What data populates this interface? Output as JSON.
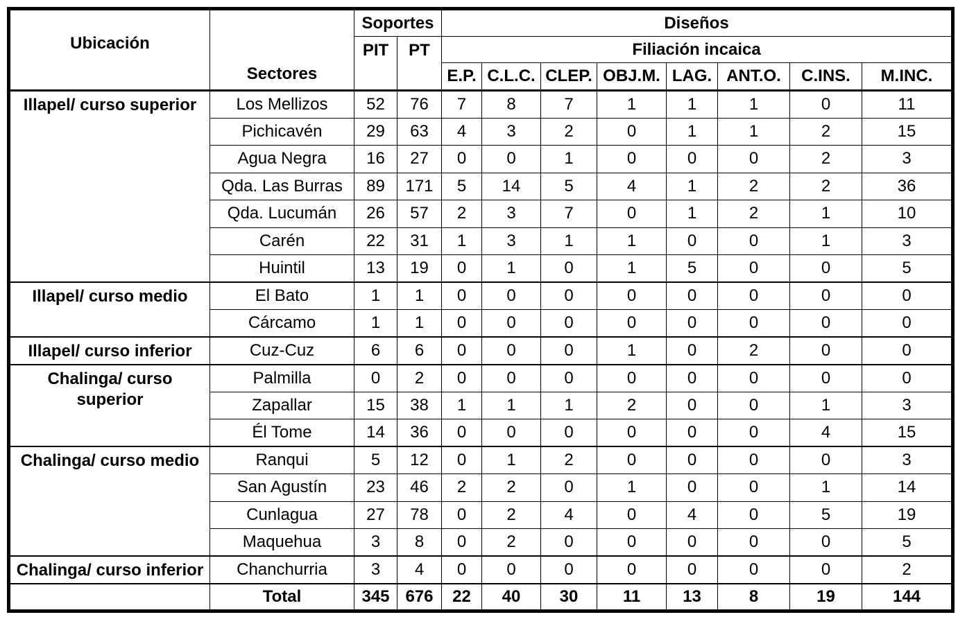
{
  "colors": {
    "border": "#000000",
    "background": "#ffffff",
    "text": "#000000"
  },
  "table": {
    "header": {
      "ubicacion": "Ubicación",
      "sectores": "Sectores",
      "soportes": "Soportes",
      "disenos": "Diseños",
      "filiacion": "Filiación incaica",
      "soporte_cols": [
        "PIT",
        "PT"
      ],
      "diseno_cols": [
        "E.P.",
        "C.L.C.",
        "CLEP.",
        "OBJ.M.",
        "LAG.",
        "ANT.O.",
        "C.INS.",
        "M.INC."
      ]
    },
    "groups": [
      {
        "ubicacion": "Illapel/ curso superior",
        "rows": [
          {
            "sector": "Los Mellizos",
            "values": [
              52,
              76,
              7,
              8,
              7,
              1,
              1,
              1,
              0,
              11
            ]
          },
          {
            "sector": "Pichicavén",
            "values": [
              29,
              63,
              4,
              3,
              2,
              0,
              1,
              1,
              2,
              15
            ]
          },
          {
            "sector": "Agua Negra",
            "values": [
              16,
              27,
              0,
              0,
              1,
              0,
              0,
              0,
              2,
              3
            ]
          },
          {
            "sector": "Qda. Las Burras",
            "values": [
              89,
              171,
              5,
              14,
              5,
              4,
              1,
              2,
              2,
              36
            ]
          },
          {
            "sector": "Qda. Lucumán",
            "values": [
              26,
              57,
              2,
              3,
              7,
              0,
              1,
              2,
              1,
              10
            ]
          },
          {
            "sector": "Carén",
            "values": [
              22,
              31,
              1,
              3,
              1,
              1,
              0,
              0,
              1,
              3
            ]
          },
          {
            "sector": "Huintil",
            "values": [
              13,
              19,
              0,
              1,
              0,
              1,
              5,
              0,
              0,
              5
            ]
          }
        ]
      },
      {
        "ubicacion": "Illapel/ curso medio",
        "rows": [
          {
            "sector": "El Bato",
            "values": [
              1,
              1,
              0,
              0,
              0,
              0,
              0,
              0,
              0,
              0
            ]
          },
          {
            "sector": "Cárcamo",
            "values": [
              1,
              1,
              0,
              0,
              0,
              0,
              0,
              0,
              0,
              0
            ]
          }
        ]
      },
      {
        "ubicacion": "Illapel/ curso inferior",
        "rows": [
          {
            "sector": "Cuz-Cuz",
            "values": [
              6,
              6,
              0,
              0,
              0,
              1,
              0,
              2,
              0,
              0
            ]
          }
        ]
      },
      {
        "ubicacion": "Chalinga/ curso\nsuperior",
        "rows": [
          {
            "sector": "Palmilla",
            "values": [
              0,
              2,
              0,
              0,
              0,
              0,
              0,
              0,
              0,
              0
            ]
          },
          {
            "sector": "Zapallar",
            "values": [
              15,
              38,
              1,
              1,
              1,
              2,
              0,
              0,
              1,
              3
            ]
          },
          {
            "sector": "Él Tome",
            "values": [
              14,
              36,
              0,
              0,
              0,
              0,
              0,
              0,
              4,
              15
            ]
          }
        ]
      },
      {
        "ubicacion": "Chalinga/ curso medio",
        "rows": [
          {
            "sector": "Ranqui",
            "values": [
              5,
              12,
              0,
              1,
              2,
              0,
              0,
              0,
              0,
              3
            ]
          },
          {
            "sector": "San Agustín",
            "values": [
              23,
              46,
              2,
              2,
              0,
              1,
              0,
              0,
              1,
              14
            ]
          },
          {
            "sector": "Cunlagua",
            "values": [
              27,
              78,
              0,
              2,
              4,
              0,
              4,
              0,
              5,
              19
            ]
          },
          {
            "sector": "Maquehua",
            "values": [
              3,
              8,
              0,
              2,
              0,
              0,
              0,
              0,
              0,
              5
            ]
          }
        ]
      },
      {
        "ubicacion": "Chalinga/ curso inferior",
        "rows": [
          {
            "sector": "Chanchurria",
            "values": [
              3,
              4,
              0,
              0,
              0,
              0,
              0,
              0,
              0,
              2
            ]
          }
        ]
      }
    ],
    "total": {
      "label": "Total",
      "values": [
        345,
        676,
        22,
        40,
        30,
        11,
        13,
        8,
        19,
        144
      ]
    }
  },
  "chart_data": {
    "type": "table",
    "columns": [
      "Ubicación",
      "Sectores",
      "PIT",
      "PT",
      "E.P.",
      "C.L.C.",
      "CLEP.",
      "OBJ.M.",
      "LAG.",
      "ANT.O.",
      "C.INS.",
      "M.INC."
    ],
    "column_groups": {
      "PIT_PT": "Soportes",
      "design_cols": "Diseños / Filiación incaica"
    },
    "rows": [
      [
        "Illapel/ curso superior",
        "Los Mellizos",
        52,
        76,
        7,
        8,
        7,
        1,
        1,
        1,
        0,
        11
      ],
      [
        "Illapel/ curso superior",
        "Pichicavén",
        29,
        63,
        4,
        3,
        2,
        0,
        1,
        1,
        2,
        15
      ],
      [
        "Illapel/ curso superior",
        "Agua Negra",
        16,
        27,
        0,
        0,
        1,
        0,
        0,
        0,
        2,
        3
      ],
      [
        "Illapel/ curso superior",
        "Qda. Las Burras",
        89,
        171,
        5,
        14,
        5,
        4,
        1,
        2,
        2,
        36
      ],
      [
        "Illapel/ curso superior",
        "Qda. Lucumán",
        26,
        57,
        2,
        3,
        7,
        0,
        1,
        2,
        1,
        10
      ],
      [
        "Illapel/ curso superior",
        "Carén",
        22,
        31,
        1,
        3,
        1,
        1,
        0,
        0,
        1,
        3
      ],
      [
        "Illapel/ curso superior",
        "Huintil",
        13,
        19,
        0,
        1,
        0,
        1,
        5,
        0,
        0,
        5
      ],
      [
        "Illapel/ curso medio",
        "El Bato",
        1,
        1,
        0,
        0,
        0,
        0,
        0,
        0,
        0,
        0
      ],
      [
        "Illapel/ curso medio",
        "Cárcamo",
        1,
        1,
        0,
        0,
        0,
        0,
        0,
        0,
        0,
        0
      ],
      [
        "Illapel/ curso inferior",
        "Cuz-Cuz",
        6,
        6,
        0,
        0,
        0,
        1,
        0,
        2,
        0,
        0
      ],
      [
        "Chalinga/ curso superior",
        "Palmilla",
        0,
        2,
        0,
        0,
        0,
        0,
        0,
        0,
        0,
        0
      ],
      [
        "Chalinga/ curso superior",
        "Zapallar",
        15,
        38,
        1,
        1,
        1,
        2,
        0,
        0,
        1,
        3
      ],
      [
        "Chalinga/ curso superior",
        "Él Tome",
        14,
        36,
        0,
        0,
        0,
        0,
        0,
        0,
        4,
        15
      ],
      [
        "Chalinga/ curso medio",
        "Ranqui",
        5,
        12,
        0,
        1,
        2,
        0,
        0,
        0,
        0,
        3
      ],
      [
        "Chalinga/ curso medio",
        "San Agustín",
        23,
        46,
        2,
        2,
        0,
        1,
        0,
        0,
        1,
        14
      ],
      [
        "Chalinga/ curso medio",
        "Cunlagua",
        27,
        78,
        0,
        2,
        4,
        0,
        4,
        0,
        5,
        19
      ],
      [
        "Chalinga/ curso medio",
        "Maquehua",
        3,
        8,
        0,
        2,
        0,
        0,
        0,
        0,
        0,
        5
      ],
      [
        "Chalinga/ curso inferior",
        "Chanchurria",
        3,
        4,
        0,
        0,
        0,
        0,
        0,
        0,
        0,
        2
      ],
      [
        "",
        "Total",
        345,
        676,
        22,
        40,
        30,
        11,
        13,
        8,
        19,
        144
      ]
    ]
  }
}
